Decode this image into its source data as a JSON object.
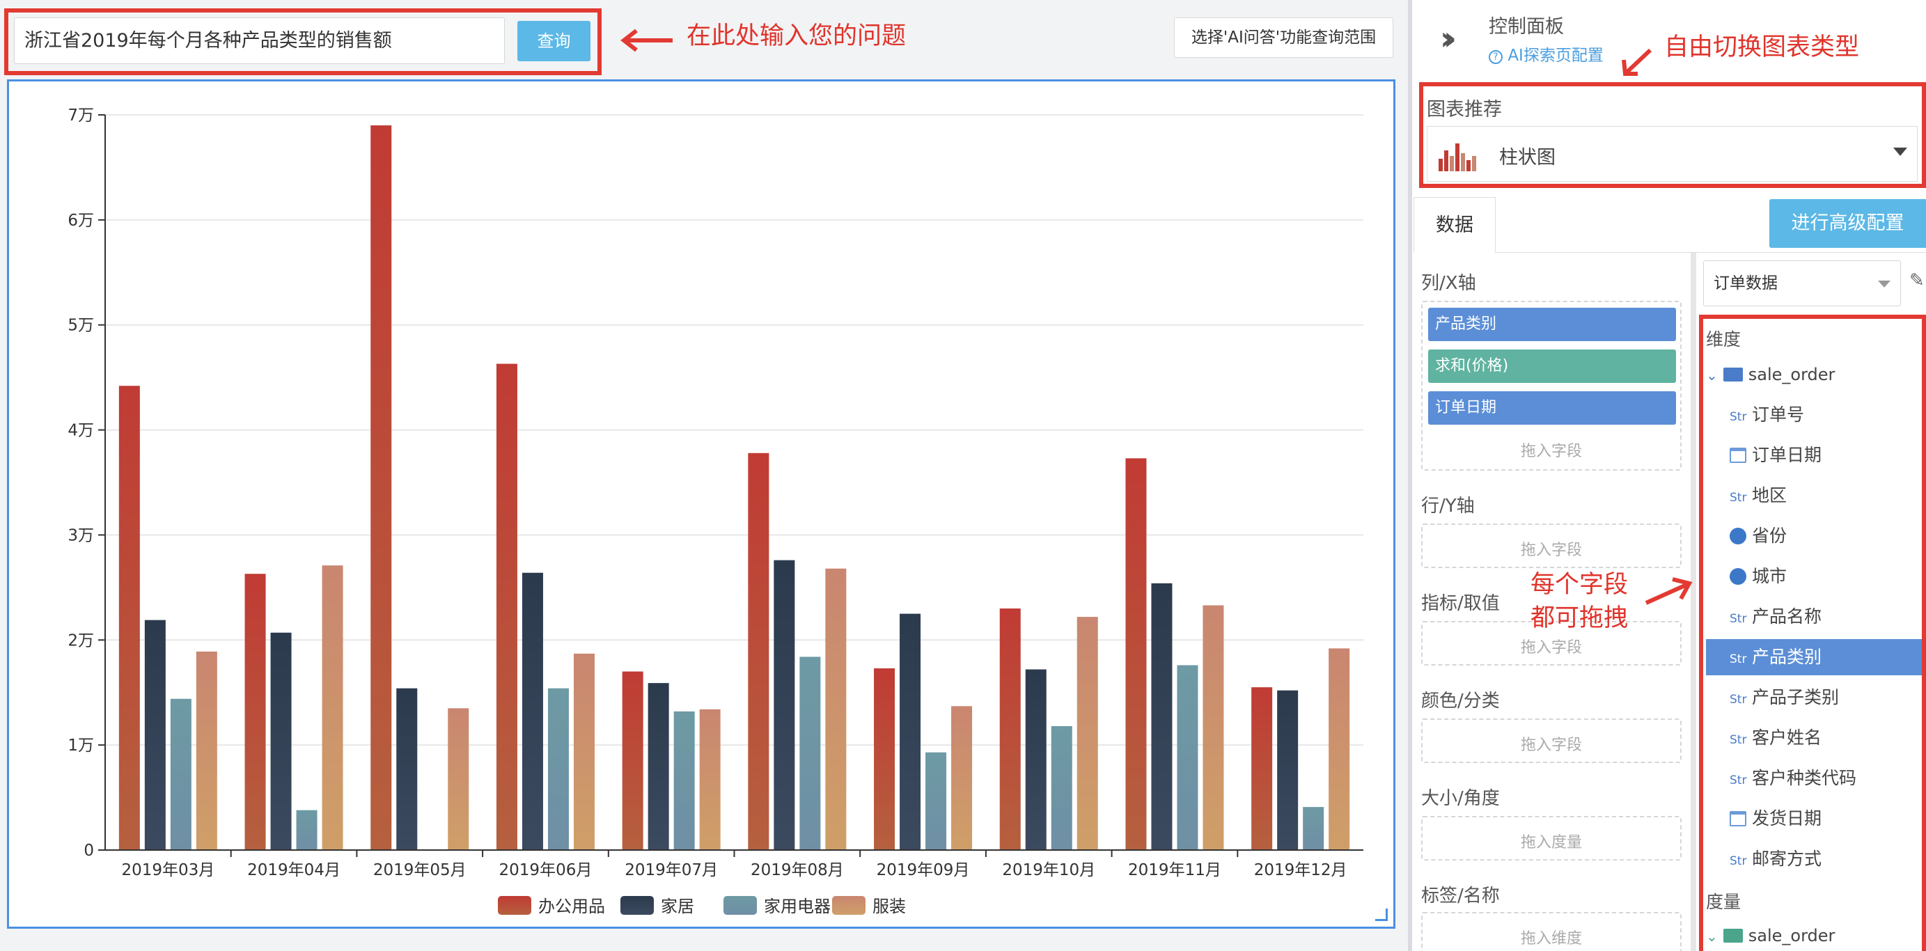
{
  "query": {
    "text": "浙江省2019年每个月各种产品类型的销售额",
    "button": "查询",
    "scope_button": "选择'AI问答'功能查询范围"
  },
  "annotations": {
    "input_hint": "在此处输入您的问题",
    "switch_hint": "自由切换图表类型",
    "drag_hint_line1": "每个字段",
    "drag_hint_line2": "都可拖拽"
  },
  "panel": {
    "title": "控制面板",
    "ai_config": "AI探索页配置",
    "chart_rec_label": "图表推荐",
    "chart_type": "柱状图",
    "tab_data": "数据",
    "advanced_button": "进行高级配置",
    "dataset": "订单数据"
  },
  "axes_config": {
    "x_label": "列/X轴",
    "x_pills": [
      "产品类别",
      "求和(价格)",
      "订单日期"
    ],
    "y_label": "行/Y轴",
    "measure_label": "指标/取值",
    "color_label": "颜色/分类",
    "size_label": "大小/角度",
    "tag_label": "标签/名称",
    "drop_field": "拖入字段",
    "drop_measure": "拖入度量",
    "drop_dimension": "拖入维度"
  },
  "fields": {
    "dimension_heading": "维度",
    "measure_heading": "度量",
    "folder": "sale_order",
    "items": [
      {
        "type": "Str",
        "name": "订单号"
      },
      {
        "type": "date",
        "name": "订单日期"
      },
      {
        "type": "Str",
        "name": "地区"
      },
      {
        "type": "geo",
        "name": "省份"
      },
      {
        "type": "geo",
        "name": "城市"
      },
      {
        "type": "Str",
        "name": "产品名称"
      },
      {
        "type": "Str",
        "name": "产品类别",
        "selected": true
      },
      {
        "type": "Str",
        "name": "产品子类别"
      },
      {
        "type": "Str",
        "name": "客户姓名"
      },
      {
        "type": "Str",
        "name": "客户种类代码"
      },
      {
        "type": "date",
        "name": "发货日期"
      },
      {
        "type": "Str",
        "name": "邮寄方式"
      }
    ]
  },
  "chart_data": {
    "type": "bar",
    "categories": [
      "2019年03月",
      "2019年04月",
      "2019年05月",
      "2019年06月",
      "2019年07月",
      "2019年08月",
      "2019年09月",
      "2019年10月",
      "2019年11月",
      "2019年12月"
    ],
    "series": [
      {
        "name": "办公用品",
        "values": [
          44200,
          26300,
          69000,
          46300,
          17000,
          37800,
          17300,
          23000,
          37300,
          15500
        ],
        "color_top": "#c03b34",
        "color_bottom": "#b5603f"
      },
      {
        "name": "家居",
        "values": [
          21900,
          20700,
          15400,
          26400,
          15900,
          27600,
          22500,
          17200,
          25400,
          15200
        ],
        "color_top": "#2c3a4d",
        "color_bottom": "#3c4a60"
      },
      {
        "name": "家用电器",
        "values": [
          14400,
          3800,
          0,
          15400,
          13200,
          18400,
          9300,
          11800,
          17600,
          4100
        ],
        "color_top": "#6d9aa4",
        "color_bottom": "#6f8fa5"
      },
      {
        "name": "服装",
        "values": [
          18900,
          27100,
          13500,
          18700,
          13400,
          26800,
          13700,
          22200,
          23300,
          19200
        ],
        "color_top": "#c98670",
        "color_bottom": "#cf9f68"
      }
    ],
    "y_ticks": [
      "0",
      "1万",
      "2万",
      "3万",
      "4万",
      "5万",
      "6万",
      "7万"
    ],
    "ylim": [
      0,
      70000
    ],
    "grid": true,
    "legend": "bottom-center"
  },
  "colors": {
    "accent": "#5cb8e6",
    "annotation": "#e23a32",
    "pill_blue": "#5b8ed6",
    "pill_green": "#5fb3a0"
  }
}
